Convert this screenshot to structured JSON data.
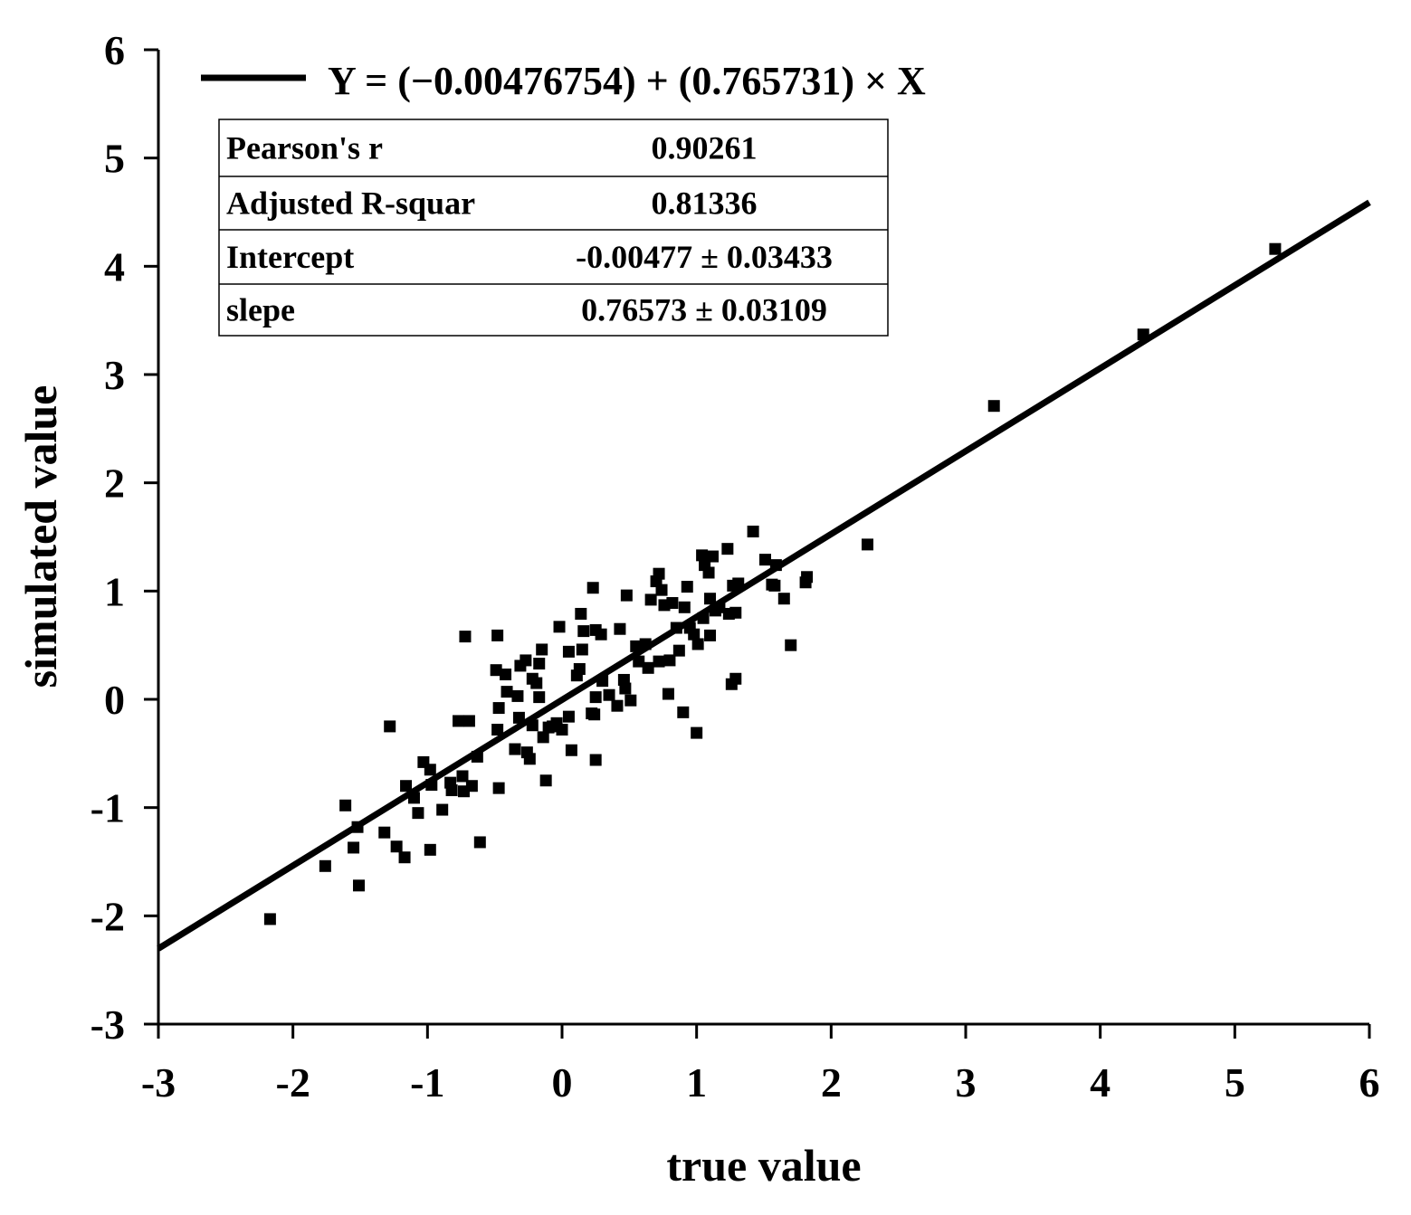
{
  "chart_data": {
    "type": "scatter",
    "xlabel": "true value",
    "ylabel": "simulated value",
    "xlim": [
      -3,
      6
    ],
    "ylim": [
      -3,
      6
    ],
    "x_ticks": [
      "-3",
      "-2",
      "-1",
      "0",
      "1",
      "2",
      "3",
      "4",
      "5",
      "6"
    ],
    "y_ticks": [
      "-3",
      "-2",
      "-1",
      "0",
      "1",
      "2",
      "3",
      "4",
      "5",
      "6"
    ],
    "grid": false,
    "legend_position": "top-left",
    "fit": {
      "label": "Y = (−0.00476754) + (0.765731) × X",
      "intercept": -0.00476754,
      "slope": 0.765731
    },
    "stats_table": [
      {
        "label": "Pearson's r",
        "value": "0.90261"
      },
      {
        "label": "Adjusted R-squar",
        "value": "0.81336"
      },
      {
        "label": "Intercept",
        "value": "-0.00477 ± 0.03433"
      },
      {
        "label": "slepe",
        "value": "0.76573 ± 0.03109"
      }
    ],
    "points": [
      [
        -2.17,
        -2.03
      ],
      [
        -1.76,
        -1.54
      ],
      [
        -1.61,
        -0.98
      ],
      [
        -1.55,
        -1.37
      ],
      [
        -1.51,
        -1.72
      ],
      [
        -1.52,
        -1.18
      ],
      [
        -1.32,
        -1.23
      ],
      [
        -1.28,
        -0.25
      ],
      [
        -1.23,
        -1.36
      ],
      [
        -1.17,
        -1.46
      ],
      [
        -1.16,
        -0.8
      ],
      [
        -1.1,
        -0.91
      ],
      [
        -1.07,
        -1.05
      ],
      [
        -1.03,
        -0.58
      ],
      [
        -0.98,
        -0.65
      ],
      [
        -0.98,
        -1.39
      ],
      [
        -0.97,
        -0.79
      ],
      [
        -0.89,
        -1.02
      ],
      [
        -0.83,
        -0.77
      ],
      [
        -0.82,
        -0.84
      ],
      [
        -0.77,
        -0.2
      ],
      [
        -0.74,
        -0.71
      ],
      [
        -0.73,
        -0.85
      ],
      [
        -0.72,
        0.58
      ],
      [
        -0.69,
        -0.2
      ],
      [
        -0.67,
        -0.8
      ],
      [
        -0.63,
        -0.53
      ],
      [
        -0.61,
        -1.32
      ],
      [
        -0.49,
        0.27
      ],
      [
        -0.48,
        0.59
      ],
      [
        -0.48,
        -0.28
      ],
      [
        -0.47,
        -0.08
      ],
      [
        -0.47,
        -0.82
      ],
      [
        -0.42,
        0.23
      ],
      [
        -0.41,
        0.07
      ],
      [
        -0.35,
        -0.46
      ],
      [
        -0.33,
        0.03
      ],
      [
        -0.32,
        -0.17
      ],
      [
        -0.31,
        0.31
      ],
      [
        -0.27,
        0.36
      ],
      [
        -0.26,
        -0.49
      ],
      [
        -0.24,
        -0.55
      ],
      [
        -0.22,
        -0.24
      ],
      [
        -0.22,
        0.19
      ],
      [
        -0.19,
        0.15
      ],
      [
        -0.17,
        0.33
      ],
      [
        -0.17,
        0.02
      ],
      [
        -0.15,
        0.46
      ],
      [
        -0.14,
        -0.35
      ],
      [
        -0.12,
        -0.75
      ],
      [
        -0.1,
        -0.26
      ],
      [
        -0.07,
        -0.25
      ],
      [
        -0.04,
        -0.22
      ],
      [
        -0.02,
        0.67
      ],
      [
        0.0,
        -0.28
      ],
      [
        0.05,
        -0.16
      ],
      [
        0.05,
        0.44
      ],
      [
        0.07,
        -0.47
      ],
      [
        0.11,
        0.22
      ],
      [
        0.13,
        0.28
      ],
      [
        0.14,
        0.79
      ],
      [
        0.15,
        0.46
      ],
      [
        0.16,
        0.63
      ],
      [
        0.22,
        -0.13
      ],
      [
        0.23,
        1.03
      ],
      [
        0.24,
        -0.14
      ],
      [
        0.25,
        0.02
      ],
      [
        0.25,
        -0.56
      ],
      [
        0.25,
        0.64
      ],
      [
        0.29,
        0.6
      ],
      [
        0.3,
        0.17
      ],
      [
        0.35,
        0.04
      ],
      [
        0.41,
        -0.06
      ],
      [
        0.43,
        0.65
      ],
      [
        0.46,
        0.18
      ],
      [
        0.47,
        0.1
      ],
      [
        0.48,
        0.96
      ],
      [
        0.51,
        -0.01
      ],
      [
        0.55,
        0.49
      ],
      [
        0.57,
        0.35
      ],
      [
        0.62,
        0.51
      ],
      [
        0.64,
        0.29
      ],
      [
        0.66,
        0.92
      ],
      [
        0.7,
        1.09
      ],
      [
        0.72,
        1.16
      ],
      [
        0.72,
        0.35
      ],
      [
        0.74,
        1.01
      ],
      [
        0.76,
        0.87
      ],
      [
        0.79,
        0.05
      ],
      [
        0.8,
        0.36
      ],
      [
        0.82,
        0.89
      ],
      [
        0.85,
        0.66
      ],
      [
        0.87,
        0.45
      ],
      [
        0.9,
        -0.12
      ],
      [
        0.91,
        0.85
      ],
      [
        0.93,
        1.04
      ],
      [
        0.95,
        0.66
      ],
      [
        0.98,
        0.6
      ],
      [
        1.0,
        -0.31
      ],
      [
        1.01,
        0.51
      ],
      [
        1.04,
        1.33
      ],
      [
        1.05,
        0.75
      ],
      [
        1.06,
        1.24
      ],
      [
        1.09,
        1.17
      ],
      [
        1.1,
        0.59
      ],
      [
        1.1,
        0.93
      ],
      [
        1.12,
        1.32
      ],
      [
        1.14,
        0.82
      ],
      [
        1.17,
        0.85
      ],
      [
        1.23,
        1.39
      ],
      [
        1.24,
        0.79
      ],
      [
        1.26,
        0.14
      ],
      [
        1.27,
        1.05
      ],
      [
        1.29,
        0.19
      ],
      [
        1.29,
        0.8
      ],
      [
        1.31,
        1.07
      ],
      [
        1.42,
        1.55
      ],
      [
        1.51,
        1.29
      ],
      [
        1.56,
        1.06
      ],
      [
        1.58,
        1.05
      ],
      [
        1.59,
        1.24
      ],
      [
        1.65,
        0.93
      ],
      [
        1.7,
        0.5
      ],
      [
        1.81,
        1.08
      ],
      [
        1.82,
        1.13
      ],
      [
        2.27,
        1.43
      ],
      [
        3.21,
        2.71
      ],
      [
        4.32,
        3.37
      ],
      [
        5.3,
        4.16
      ]
    ]
  }
}
